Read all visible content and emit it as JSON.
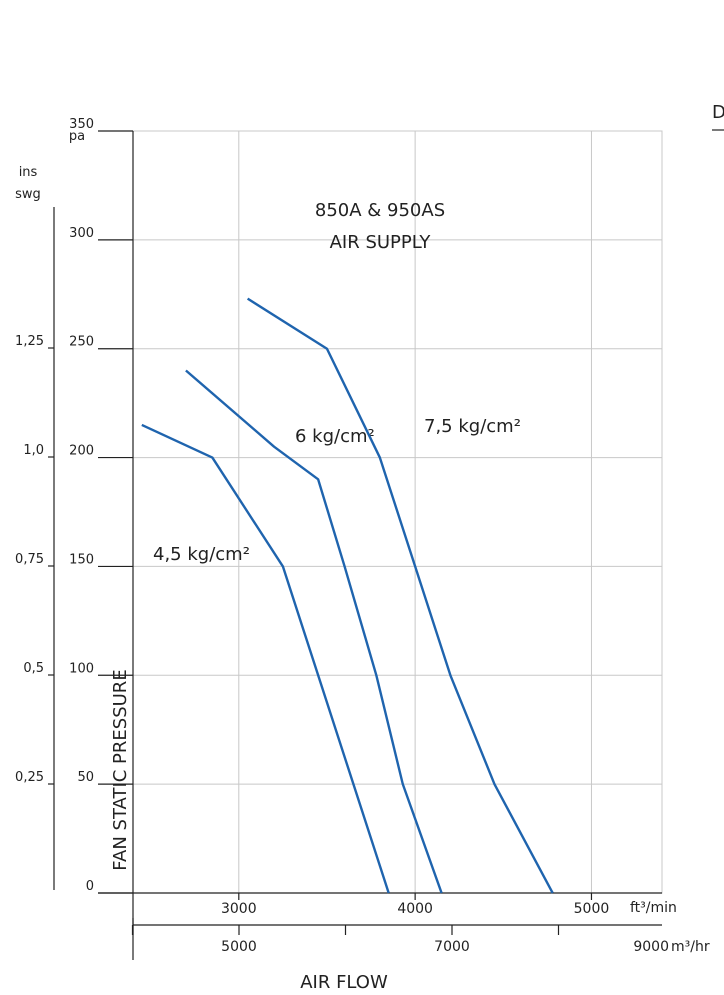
{
  "chart_data": {
    "type": "line",
    "title": "850A & 950AS",
    "subtitle": "AIR SUPPLY",
    "xlabel": "AIR FLOW",
    "ylabel": "FAN STATIC PRESSURE",
    "grid": true,
    "y_unit": "pa",
    "y_secondary_unit": [
      "ins",
      "swg"
    ],
    "x_unit_ft": "ft³/min",
    "x_unit_m": "m³/hr",
    "xlim_ft": [
      2400,
      5400
    ],
    "ylim": [
      0,
      350
    ],
    "x_ticks_ft": [
      "3000",
      "4000",
      "5000"
    ],
    "x_ticks_m": [
      "5000",
      "7000",
      "9000"
    ],
    "x_tick_values_m": [
      5000,
      7000,
      9000
    ],
    "x_minor_ticks_m": [
      4000,
      6000,
      8000
    ],
    "y_ticks": [
      "0",
      "50",
      "100",
      "150",
      "200",
      "250",
      "300",
      "350"
    ],
    "y_tick_values": [
      0,
      50,
      100,
      150,
      200,
      250,
      300,
      350
    ],
    "y_ticks_secondary": [
      "0,25",
      "0,5",
      "0,75",
      "1,0",
      "1,25"
    ],
    "y_tick_values_secondary": [
      0.25,
      0.5,
      0.75,
      1.0,
      1.25
    ],
    "series": [
      {
        "name": "4,5 kg/cm²",
        "x": [
          2450,
          2850,
          3250,
          3450,
          3650,
          3850
        ],
        "y": [
          215,
          200,
          150,
          100,
          50,
          0
        ]
      },
      {
        "name": "6 kg/cm²",
        "x": [
          2700,
          3200,
          3450,
          3600,
          3780,
          3930,
          4150
        ],
        "y": [
          240,
          205,
          190,
          150,
          100,
          50,
          0
        ]
      },
      {
        "name": "7,5 kg/cm²",
        "x": [
          3050,
          3500,
          3800,
          4000,
          4200,
          4450,
          4780
        ],
        "y": [
          273,
          250,
          200,
          150,
          100,
          50,
          0
        ]
      }
    ],
    "colors": {
      "curve": "#1f64ae",
      "grid": "#c8c8c8",
      "axis": "#222222"
    }
  },
  "edge_text": "D"
}
